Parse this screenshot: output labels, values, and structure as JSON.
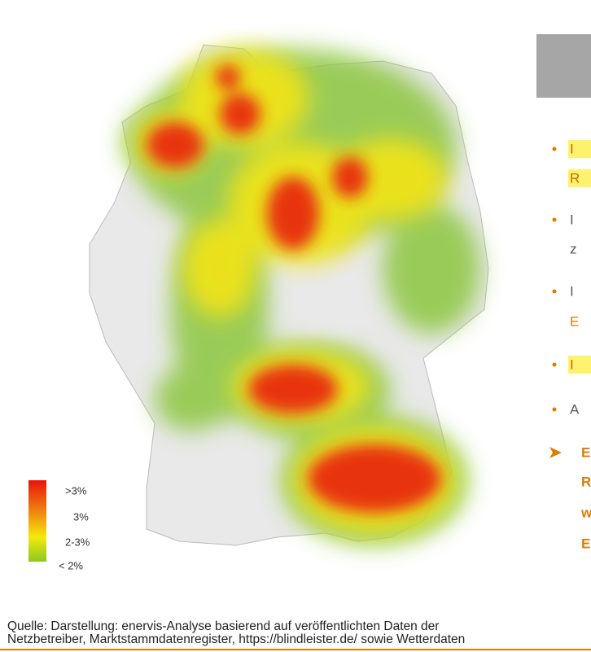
{
  "legend": {
    "labels": [
      ">3%",
      "3%",
      "2-3%",
      "< 2%"
    ]
  },
  "bullets": [
    {
      "lines": [
        "I",
        "R"
      ]
    },
    {
      "lines": [
        "I",
        "z"
      ]
    },
    {
      "lines": [
        "I",
        "E"
      ]
    },
    {
      "lines": [
        "I"
      ]
    },
    {
      "lines": [
        "A"
      ]
    }
  ],
  "conclusion": {
    "lines": [
      "E",
      "R",
      "w",
      "E"
    ]
  },
  "source": {
    "lines": [
      "Quelle: Darstellung: enervis-Analyse basierend auf veröffentlichten Daten der",
      "Netzbetreiber, Marktstammdatenregister, https://blindleister.de/ sowie Wetterdaten"
    ]
  }
}
